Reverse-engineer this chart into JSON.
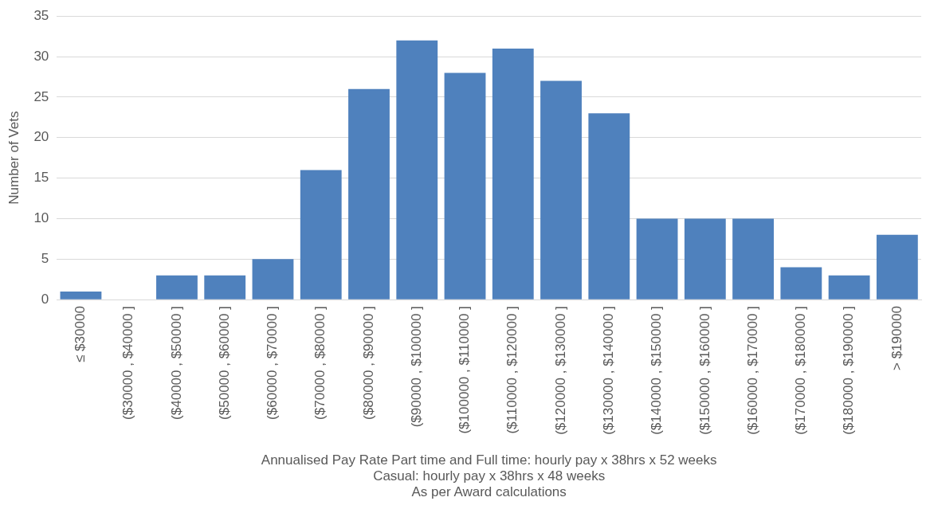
{
  "chart_data": {
    "type": "bar",
    "ylabel": "Number of Vets",
    "xlabel": "Annualised Pay Rate Part time and Full time: hourly pay x 38hrs x 52 weeks\nCasual: hourly pay x 38hrs x 48 weeks\nAs per Award calculations",
    "categories": [
      "≤ $30000",
      "($30000 , $40000 ]",
      "($40000 , $50000 ]",
      "($50000 , $60000 ]",
      "($60000 , $70000 ]",
      "($70000 , $80000 ]",
      "($80000 , $90000 ]",
      "($90000 , $100000 ]",
      "($100000 , $110000 ]",
      "($110000 , $120000 ]",
      "($120000 , $130000 ]",
      "($130000 , $140000 ]",
      "($140000 , $150000 ]",
      "($150000 , $160000 ]",
      "($160000 , $170000 ]",
      "($170000 , $180000 ]",
      "($180000 , $190000 ]",
      "> $190000"
    ],
    "values": [
      1,
      0,
      3,
      3,
      5,
      16,
      26,
      32,
      28,
      31,
      27,
      23,
      10,
      10,
      10,
      4,
      3,
      8
    ],
    "color": "#4f81bd",
    "ylim": [
      0,
      35
    ],
    "yticks": [
      0,
      5,
      10,
      15,
      20,
      25,
      30,
      35
    ],
    "grid": "y",
    "legend": false
  }
}
